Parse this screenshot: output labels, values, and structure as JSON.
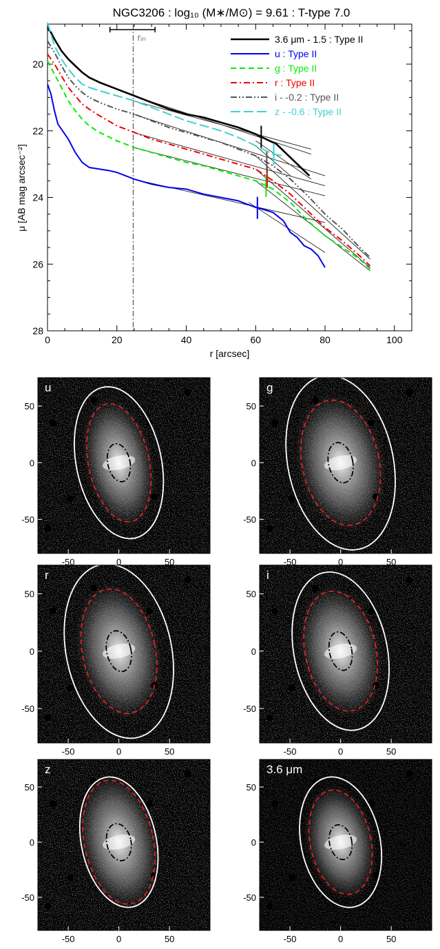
{
  "title": "NGC3206 : log₁₀ (M∗/M⊙) = 9.61 : T-type 7.0",
  "chart_data": [
    {
      "type": "line",
      "title": "NGC3206 : log₁₀ (M∗/M⊙) = 9.61 : T-type 7.0",
      "xlabel": "r [arcsec]",
      "ylabel": "μ [AB mag arcsec⁻²]",
      "xlim": [
        0,
        105
      ],
      "ylim": [
        28,
        18.8
      ],
      "y_inverted": true,
      "xticks": [
        "0",
        "20",
        "40",
        "60",
        "80",
        "100"
      ],
      "yticks": [
        "20",
        "22",
        "24",
        "26",
        "28"
      ],
      "r_in_label": "rᵢₙ",
      "r_in": 24.7,
      "r_in_errorbar": [
        18,
        31
      ],
      "legend_position": "top-right",
      "series": [
        {
          "name": "3.6 μm - 1.5 : Type II",
          "color": "#000000",
          "dash": "solid",
          "x": [
            0,
            1,
            2,
            4,
            6,
            8,
            10,
            12,
            15,
            20,
            25,
            30,
            35,
            40,
            45,
            50,
            55,
            60,
            63,
            66,
            70,
            73,
            75.5
          ],
          "y": [
            18.9,
            19.05,
            19.25,
            19.6,
            19.85,
            20.05,
            20.25,
            20.4,
            20.55,
            20.75,
            20.95,
            21.15,
            21.35,
            21.5,
            21.6,
            21.75,
            21.9,
            22.1,
            22.25,
            22.4,
            22.8,
            23.1,
            23.35
          ],
          "break_r": 61.6
        },
        {
          "name": "u : Type II",
          "color": "#0000ee",
          "dash": "solid",
          "x": [
            0,
            1,
            2,
            3,
            4,
            6,
            8,
            10,
            12,
            15,
            18,
            20,
            25,
            30,
            35,
            40,
            45,
            50,
            55,
            60,
            62,
            65,
            68,
            70,
            72,
            74,
            76,
            78,
            80
          ],
          "y": [
            20.6,
            20.9,
            21.4,
            21.8,
            21.95,
            22.25,
            22.65,
            22.95,
            23.1,
            23.15,
            23.2,
            23.25,
            23.45,
            23.6,
            23.7,
            23.75,
            23.9,
            24.0,
            24.1,
            24.3,
            24.35,
            24.45,
            24.7,
            25.05,
            25.2,
            25.45,
            25.55,
            25.75,
            26.1
          ],
          "break_r": 60.5
        },
        {
          "name": "g : Type II",
          "color": "#00ee00",
          "dash": "dashed",
          "x": [
            0,
            2,
            4,
            6,
            8,
            10,
            12,
            15,
            20,
            25,
            30,
            35,
            40,
            45,
            50,
            55,
            60,
            65,
            70,
            75,
            80,
            85,
            90,
            93
          ],
          "y": [
            19.9,
            20.3,
            20.7,
            21.1,
            21.4,
            21.65,
            21.85,
            22.05,
            22.3,
            22.5,
            22.65,
            22.8,
            22.95,
            23.05,
            23.2,
            23.35,
            23.5,
            23.75,
            24.15,
            24.7,
            25.15,
            25.5,
            25.85,
            26.15
          ],
          "break_r": 63.0
        },
        {
          "name": "r : Type II",
          "color": "#ee0000",
          "dash": "dashdot",
          "x": [
            0,
            2,
            4,
            6,
            8,
            10,
            12,
            15,
            20,
            25,
            30,
            35,
            40,
            45,
            50,
            55,
            60,
            65,
            70,
            75,
            80,
            85,
            90,
            93
          ],
          "y": [
            19.7,
            20.0,
            20.35,
            20.7,
            20.95,
            21.2,
            21.35,
            21.55,
            21.85,
            22.05,
            22.25,
            22.4,
            22.55,
            22.7,
            22.85,
            23.0,
            23.15,
            23.5,
            23.9,
            24.4,
            24.9,
            25.3,
            25.75,
            26.05
          ],
          "break_r": 63.3
        },
        {
          "name": "i - -0.2 : Type II",
          "color": "#555555",
          "dash": "dashdotdot",
          "x": [
            0,
            2,
            4,
            6,
            8,
            10,
            12,
            15,
            20,
            25,
            30,
            35,
            40,
            45,
            50,
            55,
            60,
            65,
            70,
            75,
            80,
            85,
            90,
            93
          ],
          "y": [
            19.3,
            19.65,
            20.05,
            20.4,
            20.65,
            20.85,
            21.0,
            21.15,
            21.35,
            21.5,
            21.7,
            21.9,
            22.05,
            22.2,
            22.35,
            22.55,
            22.75,
            23.05,
            23.45,
            23.95,
            24.5,
            24.95,
            25.5,
            25.8
          ],
          "break_r": 63.2
        },
        {
          "name": "z - -0.6 : Type II",
          "color": "#40d0d0",
          "dash": "longdash",
          "x": [
            0,
            1,
            2,
            4,
            6,
            8,
            10,
            12,
            15,
            20,
            25,
            30,
            35,
            40,
            45,
            50,
            55,
            60,
            63,
            65,
            68
          ],
          "y": [
            18.75,
            19.1,
            19.45,
            19.85,
            20.15,
            20.4,
            20.6,
            20.7,
            20.8,
            20.95,
            21.1,
            21.3,
            21.5,
            21.7,
            21.85,
            22.0,
            22.2,
            22.45,
            22.6,
            22.7,
            22.75
          ],
          "break_r": 65.2
        }
      ],
      "inner_fits": [
        {
          "x": [
            24.7,
            80
          ],
          "y": [
            23.45,
            24.75
          ]
        },
        {
          "x": [
            24.7,
            80
          ],
          "y": [
            22.5,
            23.95
          ]
        },
        {
          "x": [
            24.7,
            80
          ],
          "y": [
            22.05,
            23.65
          ]
        },
        {
          "x": [
            24.7,
            80
          ],
          "y": [
            21.5,
            23.35
          ]
        },
        {
          "x": [
            24.7,
            76
          ],
          "y": [
            21.1,
            22.55
          ]
        },
        {
          "x": [
            24.7,
            76
          ],
          "y": [
            20.95,
            22.7
          ]
        }
      ],
      "outer_fits": [
        {
          "x": [
            58,
            80
          ],
          "y": [
            24.15,
            25.65
          ]
        },
        {
          "x": [
            60,
            93
          ],
          "y": [
            23.5,
            26.2
          ]
        },
        {
          "x": [
            60,
            93
          ],
          "y": [
            23.15,
            26.1
          ]
        },
        {
          "x": [
            60,
            93
          ],
          "y": [
            22.75,
            25.85
          ]
        },
        {
          "x": [
            60,
            76
          ],
          "y": [
            22.3,
            23.45
          ]
        },
        {
          "x": [
            60,
            70
          ],
          "y": [
            22.45,
            23.35
          ]
        }
      ]
    },
    {
      "type": "image",
      "label": "u",
      "xticks": [
        "-50",
        "0",
        "50"
      ],
      "yticks": [
        "50",
        "0",
        "-50"
      ],
      "outer_ellipse": [
        42,
        68
      ],
      "red_ellipse": [
        30,
        53
      ],
      "inner_ellipse": [
        11,
        17
      ]
    },
    {
      "type": "image",
      "label": "g",
      "xticks": [
        "-50",
        "0",
        "50"
      ],
      "yticks": [
        "50",
        "0",
        "-50"
      ],
      "outer_ellipse": [
        52,
        78
      ],
      "red_ellipse": [
        38,
        56
      ],
      "inner_ellipse": [
        12,
        18
      ]
    },
    {
      "type": "image",
      "label": "r",
      "xticks": [
        "-50",
        "0",
        "50"
      ],
      "yticks": [
        "50",
        "0",
        "-50"
      ],
      "outer_ellipse": [
        52,
        77
      ],
      "red_ellipse": [
        36,
        55
      ],
      "inner_ellipse": [
        12,
        18
      ]
    },
    {
      "type": "image",
      "label": "i",
      "xticks": [
        "-50",
        "0",
        "50"
      ],
      "yticks": [
        "50",
        "0",
        "-50"
      ],
      "outer_ellipse": [
        46,
        70
      ],
      "red_ellipse": [
        35,
        53
      ],
      "inner_ellipse": [
        11,
        17
      ]
    },
    {
      "type": "image",
      "label": "z",
      "xticks": [
        "-50",
        "0",
        "50"
      ],
      "yticks": [
        "50",
        "0",
        "-50"
      ],
      "outer_ellipse": [
        37,
        60
      ],
      "red_ellipse": [
        34,
        57
      ],
      "inner_ellipse": [
        12,
        17
      ]
    },
    {
      "type": "image",
      "label": "3.6 μm",
      "xticks": [
        "-50",
        "0",
        "50"
      ],
      "yticks": [
        "50",
        "0",
        "-50"
      ],
      "outer_ellipse": [
        39,
        60
      ],
      "red_ellipse": [
        30,
        48
      ],
      "inner_ellipse": [
        11,
        16
      ]
    }
  ]
}
